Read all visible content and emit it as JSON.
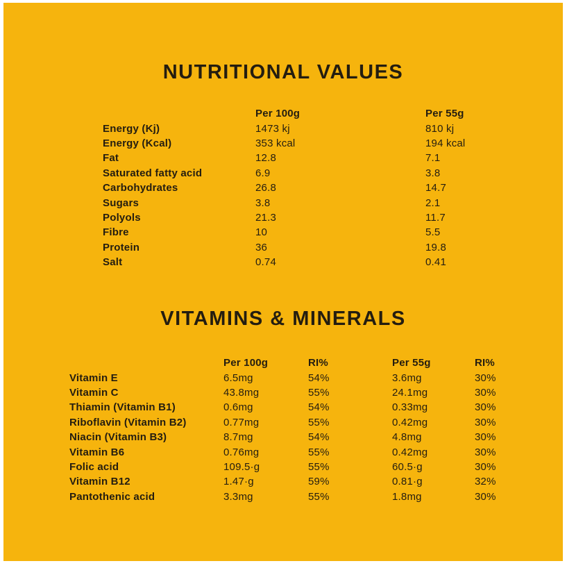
{
  "page": {
    "background_color": "#F6B40D",
    "text_color": "#241D10",
    "outer_background_color": "#FFFFFF"
  },
  "section1": {
    "title": "NUTRITIONAL VALUES",
    "columns": [
      "Per 100g",
      "Per 55g"
    ],
    "rows": [
      {
        "label": "Energy (Kj)",
        "per100g": "1473 kj",
        "per55g": "810 kj"
      },
      {
        "label": "Energy (Kcal)",
        "per100g": "353 kcal",
        "per55g": "194 kcal"
      },
      {
        "label": "Fat",
        "per100g": "12.8",
        "per55g": "7.1"
      },
      {
        "label": "Saturated fatty acid",
        "per100g": "6.9",
        "per55g": "3.8"
      },
      {
        "label": "Carbohydrates",
        "per100g": "26.8",
        "per55g": "14.7"
      },
      {
        "label": "Sugars",
        "per100g": "3.8",
        "per55g": "2.1"
      },
      {
        "label": "Polyols",
        "per100g": "21.3",
        "per55g": "11.7"
      },
      {
        "label": "Fibre",
        "per100g": "10",
        "per55g": "5.5"
      },
      {
        "label": "Protein",
        "per100g": "36",
        "per55g": "19.8"
      },
      {
        "label": "Salt",
        "per100g": "0.74",
        "per55g": "0.41"
      }
    ]
  },
  "section2": {
    "title": "VITAMINS & MINERALS",
    "columns": [
      "Per 100g",
      "RI%",
      "Per 55g",
      "RI%"
    ],
    "rows": [
      {
        "label": "Vitamin E",
        "per100g": "6.5mg",
        "ri100": "54%",
        "per55g": "3.6mg",
        "ri55": "30%"
      },
      {
        "label": "Vitamin C",
        "per100g": "43.8mg",
        "ri100": "55%",
        "per55g": "24.1mg",
        "ri55": "30%"
      },
      {
        "label": "Thiamin (Vitamin B1)",
        "per100g": "0.6mg",
        "ri100": "54%",
        "per55g": "0.33mg",
        "ri55": "30%"
      },
      {
        "label": "Riboflavin (Vitamin B2)",
        "per100g": "0.77mg",
        "ri100": "55%",
        "per55g": "0.42mg",
        "ri55": "30%"
      },
      {
        "label": "Niacin (Vitamin B3)",
        "per100g": "8.7mg",
        "ri100": "54%",
        "per55g": "4.8mg",
        "ri55": "30%"
      },
      {
        "label": "Vitamin B6",
        "per100g": "0.76mg",
        "ri100": "55%",
        "per55g": "0.42mg",
        "ri55": "30%"
      },
      {
        "label": "Folic acid",
        "per100g": "109.5·g",
        "ri100": "55%",
        "per55g": "60.5·g",
        "ri55": "30%"
      },
      {
        "label": "Vitamin B12",
        "per100g": "1.47·g",
        "ri100": "59%",
        "per55g": "0.81·g",
        "ri55": "32%"
      },
      {
        "label": "Pantothenic acid",
        "per100g": "3.3mg",
        "ri100": "55%",
        "per55g": "1.8mg",
        "ri55": "30%"
      }
    ]
  }
}
